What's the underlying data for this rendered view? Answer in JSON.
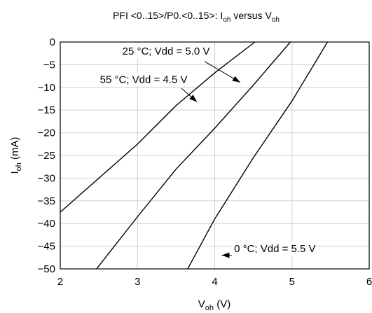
{
  "chart_data": {
    "type": "line",
    "title": {
      "main": "PFI <0..15>/P0.<0..15>: I",
      "sub1": "oh",
      "mid": " versus V",
      "sub2": "oh"
    },
    "xlabel": {
      "main": "V",
      "sub": "oh",
      "unit": " (V)"
    },
    "ylabel": {
      "main": "I",
      "sub": "oh",
      "unit": " (mA)"
    },
    "xlim": [
      2,
      6
    ],
    "ylim": [
      -50,
      0
    ],
    "xticks": [
      2,
      3,
      4,
      5,
      6
    ],
    "yticks": [
      0,
      -5,
      -10,
      -15,
      -20,
      -25,
      -30,
      -35,
      -40,
      -45,
      -50
    ],
    "ytick_labels": [
      "0",
      "−5",
      "−10",
      "−15",
      "−20",
      "−25",
      "−30",
      "−35",
      "−40",
      "−45",
      "−50"
    ],
    "grid": true,
    "series": [
      {
        "name": "55 °C; Vdd = 4.5 V",
        "x": [
          2.0,
          3.0,
          3.5,
          4.0,
          4.52
        ],
        "y": [
          -37.5,
          -22.5,
          -14.0,
          -6.8,
          0
        ]
      },
      {
        "name": "25 °C; Vdd = 5.0 V",
        "x": [
          2.47,
          3.0,
          3.5,
          4.0,
          4.5,
          4.98
        ],
        "y": [
          -50,
          -38.5,
          -28.0,
          -19.0,
          -9.5,
          0
        ]
      },
      {
        "name": "0 °C; Vdd = 5.5 V",
        "x": [
          3.65,
          4.0,
          4.5,
          5.0,
          5.46
        ],
        "y": [
          -50,
          -39.0,
          -25.5,
          -13.0,
          0
        ]
      }
    ],
    "annotations": [
      {
        "text": "25 °C; Vdd = 5.0 V",
        "x": 3.37,
        "y": -2.8,
        "anchor": "middle",
        "arrow_from": [
          3.87,
          -4.3
        ],
        "arrow_to": [
          4.33,
          -8.9
        ]
      },
      {
        "text": "55 °C; Vdd = 4.5 V",
        "x": 3.08,
        "y": -9.0,
        "anchor": "middle",
        "arrow_from": [
          3.57,
          -10.2
        ],
        "arrow_to": [
          3.77,
          -13.2
        ]
      },
      {
        "text": "0 °C; Vdd = 5.5 V",
        "x": 4.25,
        "y": -46.3,
        "anchor": "start",
        "arrow_from": [
          4.22,
          -47.0
        ],
        "arrow_to": [
          4.09,
          -47.0
        ],
        "offset_y": 10
      }
    ]
  }
}
